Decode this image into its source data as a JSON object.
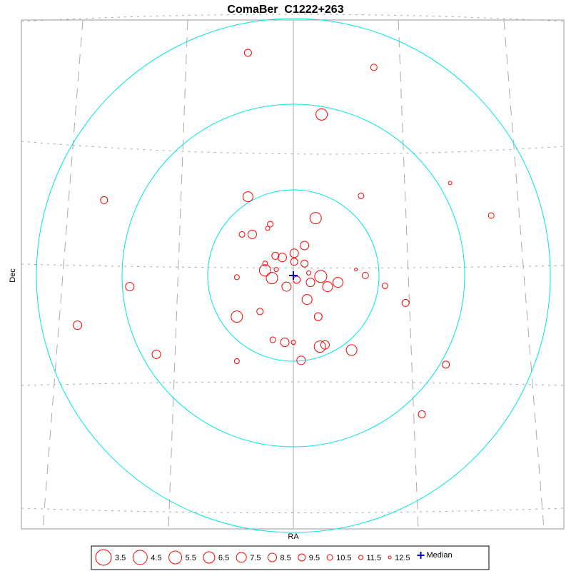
{
  "chart_data": {
    "type": "scatter",
    "title": "ComaBer  C1222+263",
    "x_label": "RA",
    "y_label": "Dec",
    "xlim": [
      -3.175,
      3.158
    ],
    "ylim": [
      -2.958,
      2.983
    ],
    "rings": [
      1,
      2,
      3
    ],
    "ring_color": "#00e5e5",
    "series": [
      {
        "color": "#ff0000",
        "x": [
          -0.53,
          0.94,
          0.33,
          -2.21,
          -0.53,
          0.79,
          1.83,
          2.31,
          0.26,
          -0.27,
          -0.3,
          -0.6,
          -0.48,
          0.13,
          0.01,
          -0.21,
          -0.13,
          0.01,
          0.13,
          -0.33,
          -0.2,
          -0.33,
          -0.66,
          -0.25,
          0.18,
          0.32,
          0.04,
          0.2,
          -0.08,
          0.4,
          0.52,
          0.73,
          0.84,
          1.07,
          -1.91,
          0.16,
          1.31,
          -0.39,
          -0.66,
          0.29,
          -2.52,
          -0.24,
          -0.1,
          0.0,
          0.31,
          0.37,
          0.68,
          -1.6,
          -0.66,
          0.09,
          1.78,
          1.5
        ],
        "y": [
          2.6,
          2.43,
          1.88,
          0.88,
          0.92,
          0.93,
          1.08,
          0.7,
          0.67,
          0.6,
          0.55,
          0.48,
          0.48,
          0.35,
          0.26,
          0.23,
          0.21,
          0.16,
          0.14,
          0.14,
          0.07,
          0.06,
          -0.02,
          -0.03,
          0.03,
          -0.01,
          -0.05,
          -0.08,
          -0.13,
          -0.13,
          -0.08,
          0.07,
          0.0,
          -0.12,
          -0.13,
          -0.28,
          -0.32,
          -0.42,
          -0.48,
          -0.48,
          -0.58,
          -0.75,
          -0.78,
          -0.78,
          -0.83,
          -0.81,
          -0.87,
          -0.92,
          -1.0,
          -0.99,
          -1.04,
          -1.62
        ],
        "mag": [
          9.5,
          10,
          6.5,
          9.5,
          7.5,
          10.5,
          12,
          10.5,
          6.5,
          10.5,
          11.5,
          10.5,
          8.5,
          8.5,
          8.5,
          9.5,
          8.5,
          9.5,
          9.5,
          11,
          11.5,
          6.5,
          11,
          6.5,
          11.5,
          6,
          9.5,
          8.5,
          8,
          7.5,
          7.5,
          12.5,
          10,
          10.5,
          8.5,
          7.5,
          9.5,
          10,
          6.5,
          9,
          8.5,
          10.5,
          8.5,
          11.5,
          6.5,
          8.5,
          7,
          8.5,
          11,
          8.5,
          9.5,
          9.5
        ]
      }
    ],
    "median": {
      "name": "Median",
      "x": 0,
      "y": 0,
      "color": "#0000cc"
    },
    "legend_mags": [
      3.5,
      4.5,
      5.5,
      6.5,
      7.5,
      8.5,
      9.5,
      10.5,
      11.5,
      12.5
    ]
  }
}
